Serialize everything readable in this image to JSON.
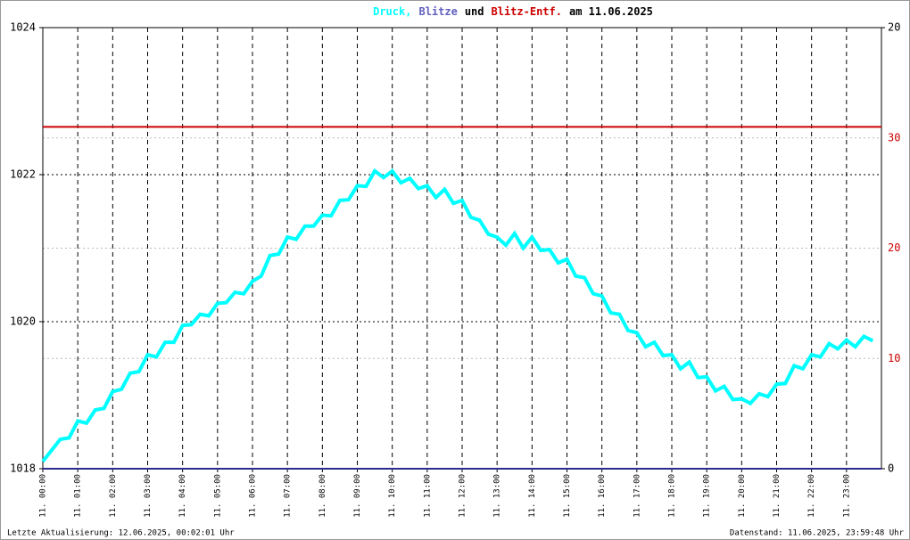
{
  "chart_data": {
    "type": "line",
    "title_joiners": [
      ",",
      "und",
      "am 11.06.2025"
    ],
    "footer_left": "Letzte Aktualisierung: 12.06.2025, 00:02:01 Uhr",
    "footer_right": "Datenstand: 11.06.2025, 23:59:48 Uhr",
    "xlim": [
      0,
      24
    ],
    "xticks": [
      {
        "value": 0,
        "label": "11. 00:00"
      },
      {
        "value": 1,
        "label": "11. 01:00"
      },
      {
        "value": 2,
        "label": "11. 02:00"
      },
      {
        "value": 3,
        "label": "11. 03:00"
      },
      {
        "value": 4,
        "label": "11. 04:00"
      },
      {
        "value": 5,
        "label": "11. 05:00"
      },
      {
        "value": 6,
        "label": "11. 06:00"
      },
      {
        "value": 7,
        "label": "11. 07:00"
      },
      {
        "value": 8,
        "label": "11. 08:00"
      },
      {
        "value": 9,
        "label": "11. 09:00"
      },
      {
        "value": 10,
        "label": "11. 10:00"
      },
      {
        "value": 11,
        "label": "11. 11:00"
      },
      {
        "value": 12,
        "label": "11. 12:00"
      },
      {
        "value": 13,
        "label": "11. 13:00"
      },
      {
        "value": 14,
        "label": "11. 14:00"
      },
      {
        "value": 15,
        "label": "11. 15:00"
      },
      {
        "value": 16,
        "label": "11. 16:00"
      },
      {
        "value": 17,
        "label": "11. 17:00"
      },
      {
        "value": 18,
        "label": "11. 18:00"
      },
      {
        "value": 19,
        "label": "11. 19:00"
      },
      {
        "value": 20,
        "label": "11. 20:00"
      },
      {
        "value": 21,
        "label": "11. 21:00"
      },
      {
        "value": 22,
        "label": "11. 22:00"
      },
      {
        "value": 23,
        "label": "11. 23:00"
      }
    ],
    "ylim": [
      1018,
      1024
    ],
    "yticks": [
      1018,
      1020,
      1022,
      1024
    ],
    "y2lim": [
      0,
      20
    ],
    "y2ticks": [
      0,
      20
    ],
    "y3lim": [
      0,
      40
    ],
    "y3ticks": [
      10,
      20,
      30
    ],
    "y3color": "#cc0000",
    "grid": true,
    "series": [
      {
        "name": "Druck",
        "color": "#00ffff",
        "axis": "y",
        "x": [
          0,
          0.25,
          0.5,
          0.75,
          1,
          1.25,
          1.5,
          1.75,
          2,
          2.25,
          2.5,
          2.75,
          3,
          3.25,
          3.5,
          3.75,
          4,
          4.25,
          4.5,
          4.75,
          5,
          5.25,
          5.5,
          5.75,
          6,
          6.25,
          6.5,
          6.75,
          7,
          7.25,
          7.5,
          7.75,
          8,
          8.25,
          8.5,
          8.75,
          9,
          9.25,
          9.5,
          9.75,
          10,
          10.25,
          10.5,
          10.75,
          11,
          11.25,
          11.5,
          11.75,
          12,
          12.25,
          12.5,
          12.75,
          13,
          13.25,
          13.5,
          13.75,
          14,
          14.25,
          14.5,
          14.75,
          15,
          15.25,
          15.5,
          15.75,
          16,
          16.25,
          16.5,
          16.75,
          17,
          17.25,
          17.5,
          17.75,
          18,
          18.25,
          18.5,
          18.75,
          19,
          19.25,
          19.5,
          19.75,
          20,
          20.25,
          20.5,
          20.75,
          21,
          21.25,
          21.5,
          21.75,
          22,
          22.25,
          22.5,
          22.75,
          23,
          23.25,
          23.5,
          23.75
        ],
        "values": [
          1018.1,
          1018.25,
          1018.4,
          1018.42,
          1018.65,
          1018.62,
          1018.8,
          1018.82,
          1019.05,
          1019.08,
          1019.3,
          1019.32,
          1019.55,
          1019.52,
          1019.72,
          1019.72,
          1019.95,
          1019.96,
          1020.1,
          1020.08,
          1020.25,
          1020.26,
          1020.4,
          1020.38,
          1020.55,
          1020.62,
          1020.9,
          1020.92,
          1021.15,
          1021.12,
          1021.3,
          1021.3,
          1021.45,
          1021.44,
          1021.65,
          1021.66,
          1021.85,
          1021.84,
          1022.05,
          1021.96,
          1022.05,
          1021.89,
          1021.95,
          1021.81,
          1021.85,
          1021.69,
          1021.8,
          1021.61,
          1021.65,
          1021.42,
          1021.38,
          1021.19,
          1021.15,
          1021.04,
          1021.2,
          1021.0,
          1021.15,
          1020.97,
          1020.98,
          1020.8,
          1020.85,
          1020.62,
          1020.6,
          1020.38,
          1020.35,
          1020.12,
          1020.1,
          1019.88,
          1019.85,
          1019.66,
          1019.72,
          1019.54,
          1019.55,
          1019.36,
          1019.45,
          1019.24,
          1019.25,
          1019.06,
          1019.12,
          1018.94,
          1018.95,
          1018.89,
          1019.02,
          1018.98,
          1019.15,
          1019.16,
          1019.4,
          1019.36,
          1019.55,
          1019.52,
          1019.7,
          1019.63,
          1019.75,
          1019.66,
          1019.8,
          1019.74
        ]
      },
      {
        "name": "Blitze",
        "color": "#2b2b8f",
        "title_color": "#6060c0",
        "axis": "y2",
        "x": [
          0,
          24
        ],
        "values": [
          0,
          0
        ]
      },
      {
        "name": "Blitz-Entf.",
        "color": "#cc0000",
        "axis": "y3",
        "x": [
          0,
          24
        ],
        "values": [
          31,
          31
        ]
      }
    ]
  }
}
